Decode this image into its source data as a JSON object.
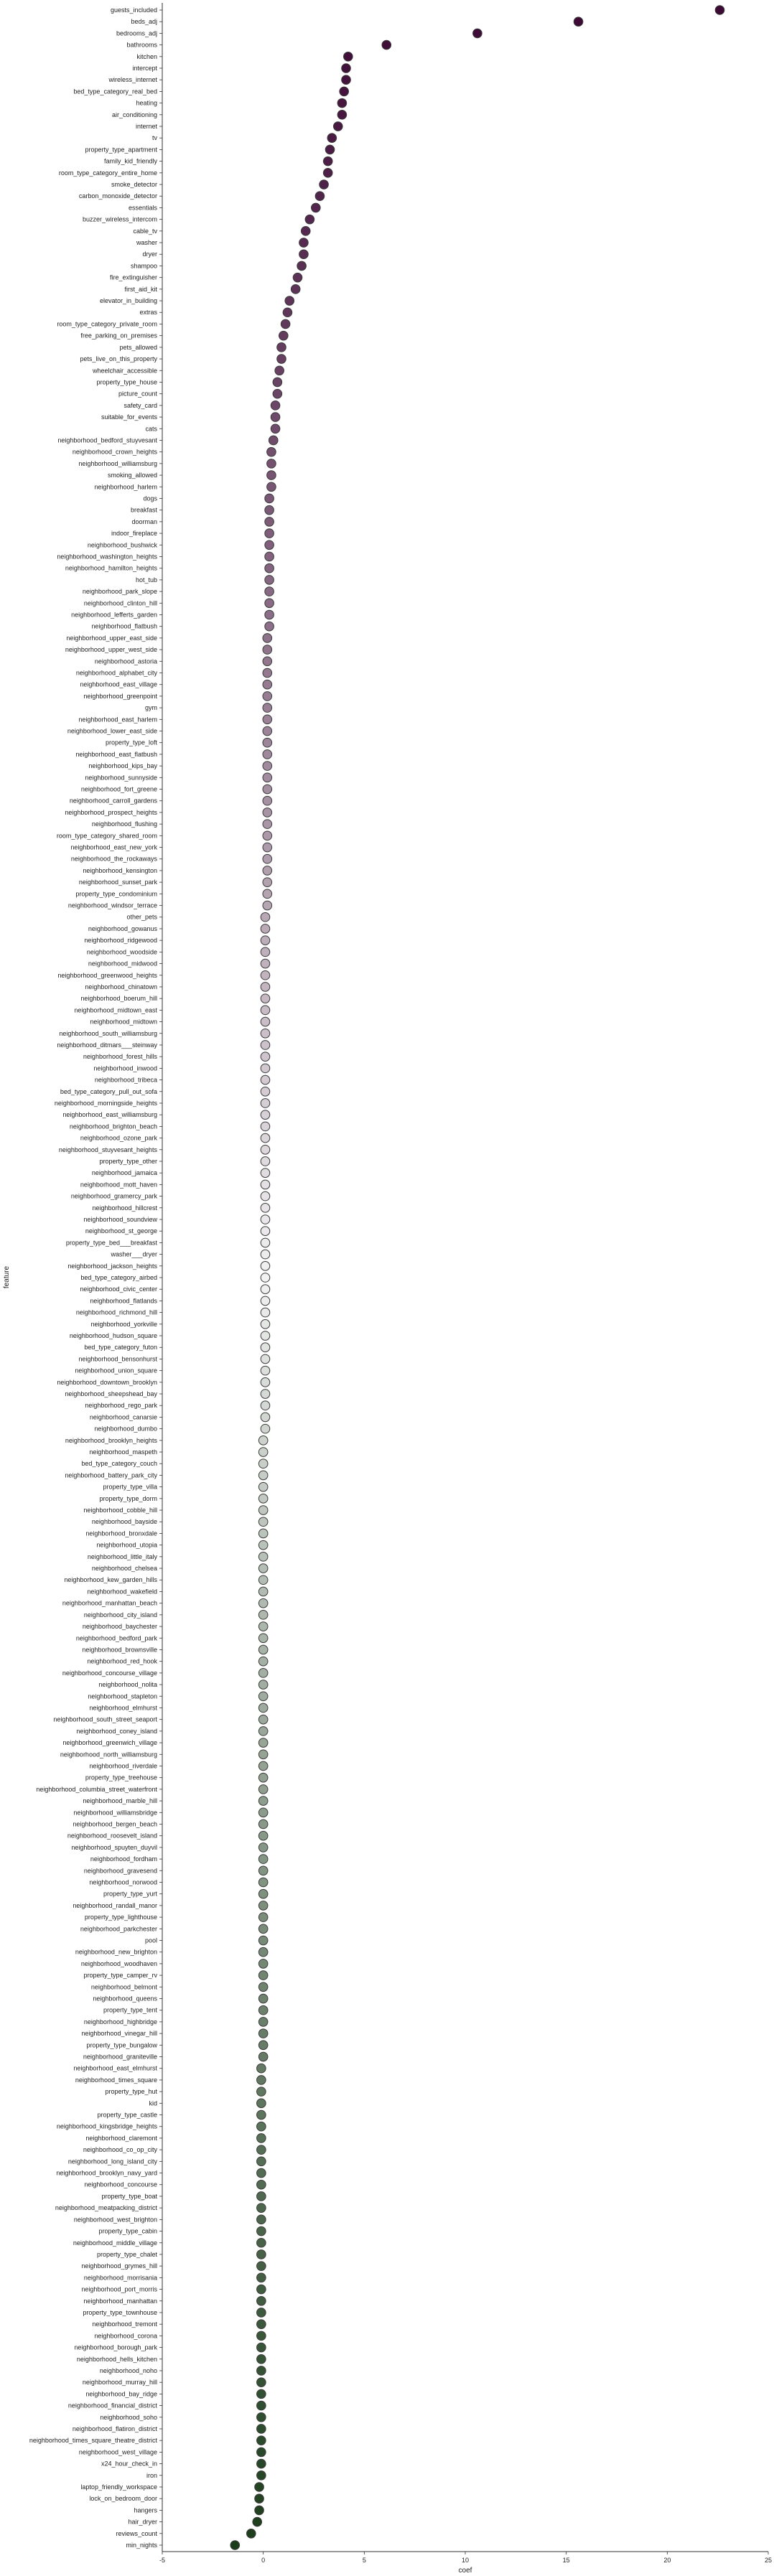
{
  "chart_data": {
    "type": "scatter",
    "title": "",
    "xlabel": "coef",
    "ylabel": "feature",
    "xlim": [
      -5,
      25
    ],
    "xticks": [
      -5,
      0,
      5,
      10,
      15,
      20,
      25
    ],
    "grid": false,
    "legend": "none",
    "palette": {
      "high": "#3d0a36",
      "mid": "#f2f2f2",
      "low": "#1c3d1c"
    },
    "points": [
      {
        "feature": "guests_included",
        "coef": 22.6
      },
      {
        "feature": "beds_adj",
        "coef": 15.6
      },
      {
        "feature": "bedrooms_adj",
        "coef": 10.6
      },
      {
        "feature": "bathrooms",
        "coef": 6.1
      },
      {
        "feature": "kitchen",
        "coef": 4.2
      },
      {
        "feature": "intercept",
        "coef": 4.1
      },
      {
        "feature": "wireless_internet",
        "coef": 4.1
      },
      {
        "feature": "bed_type_category_real_bed",
        "coef": 4.0
      },
      {
        "feature": "heating",
        "coef": 3.9
      },
      {
        "feature": "air_conditioning",
        "coef": 3.9
      },
      {
        "feature": "internet",
        "coef": 3.7
      },
      {
        "feature": "tv",
        "coef": 3.4
      },
      {
        "feature": "property_type_apartment",
        "coef": 3.3
      },
      {
        "feature": "family_kid_friendly",
        "coef": 3.2
      },
      {
        "feature": "room_type_category_entire_home",
        "coef": 3.2
      },
      {
        "feature": "smoke_detector",
        "coef": 3.0
      },
      {
        "feature": "carbon_monoxide_detector",
        "coef": 2.8
      },
      {
        "feature": "essentials",
        "coef": 2.6
      },
      {
        "feature": "buzzer_wireless_intercom",
        "coef": 2.3
      },
      {
        "feature": "cable_tv",
        "coef": 2.1
      },
      {
        "feature": "washer",
        "coef": 2.0
      },
      {
        "feature": "dryer",
        "coef": 2.0
      },
      {
        "feature": "shampoo",
        "coef": 1.9
      },
      {
        "feature": "fire_extinguisher",
        "coef": 1.7
      },
      {
        "feature": "first_aid_kit",
        "coef": 1.6
      },
      {
        "feature": "elevator_in_building",
        "coef": 1.3
      },
      {
        "feature": "extras",
        "coef": 1.2
      },
      {
        "feature": "room_type_category_private_room",
        "coef": 1.1
      },
      {
        "feature": "free_parking_on_premises",
        "coef": 1.0
      },
      {
        "feature": "pets_allowed",
        "coef": 0.9
      },
      {
        "feature": "pets_live_on_this_property",
        "coef": 0.9
      },
      {
        "feature": "wheelchair_accessible",
        "coef": 0.8
      },
      {
        "feature": "property_type_house",
        "coef": 0.7
      },
      {
        "feature": "picture_count",
        "coef": 0.7
      },
      {
        "feature": "safety_card",
        "coef": 0.6
      },
      {
        "feature": "suitable_for_events",
        "coef": 0.6
      },
      {
        "feature": "cats",
        "coef": 0.6
      },
      {
        "feature": "neighborhood_bedford_stuyvesant",
        "coef": 0.5
      },
      {
        "feature": "neighborhood_crown_heights",
        "coef": 0.4
      },
      {
        "feature": "neighborhood_williamsburg",
        "coef": 0.4
      },
      {
        "feature": "smoking_allowed",
        "coef": 0.4
      },
      {
        "feature": "neighborhood_harlem",
        "coef": 0.4
      },
      {
        "feature": "dogs",
        "coef": 0.3
      },
      {
        "feature": "breakfast",
        "coef": 0.3
      },
      {
        "feature": "doorman",
        "coef": 0.3
      },
      {
        "feature": "indoor_fireplace",
        "coef": 0.3
      },
      {
        "feature": "neighborhood_bushwick",
        "coef": 0.3
      },
      {
        "feature": "neighborhood_washington_heights",
        "coef": 0.3
      },
      {
        "feature": "neighborhood_hamilton_heights",
        "coef": 0.3
      },
      {
        "feature": "hot_tub",
        "coef": 0.3
      },
      {
        "feature": "neighborhood_park_slope",
        "coef": 0.3
      },
      {
        "feature": "neighborhood_clinton_hill",
        "coef": 0.3
      },
      {
        "feature": "neighborhood_lefferts_garden",
        "coef": 0.3
      },
      {
        "feature": "neighborhood_flatbush",
        "coef": 0.3
      },
      {
        "feature": "neighborhood_upper_east_side",
        "coef": 0.2
      },
      {
        "feature": "neighborhood_upper_west_side",
        "coef": 0.2
      },
      {
        "feature": "neighborhood_astoria",
        "coef": 0.2
      },
      {
        "feature": "neighborhood_alphabet_city",
        "coef": 0.2
      },
      {
        "feature": "neighborhood_east_village",
        "coef": 0.2
      },
      {
        "feature": "neighborhood_greenpoint",
        "coef": 0.2
      },
      {
        "feature": "gym",
        "coef": 0.2
      },
      {
        "feature": "neighborhood_east_harlem",
        "coef": 0.2
      },
      {
        "feature": "neighborhood_lower_east_side",
        "coef": 0.2
      },
      {
        "feature": "property_type_loft",
        "coef": 0.2
      },
      {
        "feature": "neighborhood_east_flatbush",
        "coef": 0.2
      },
      {
        "feature": "neighborhood_kips_bay",
        "coef": 0.2
      },
      {
        "feature": "neighborhood_sunnyside",
        "coef": 0.2
      },
      {
        "feature": "neighborhood_fort_greene",
        "coef": 0.2
      },
      {
        "feature": "neighborhood_carroll_gardens",
        "coef": 0.2
      },
      {
        "feature": "neighborhood_prospect_heights",
        "coef": 0.2
      },
      {
        "feature": "neighborhood_flushing",
        "coef": 0.2
      },
      {
        "feature": "room_type_category_shared_room",
        "coef": 0.2
      },
      {
        "feature": "neighborhood_east_new_york",
        "coef": 0.2
      },
      {
        "feature": "neighborhood_the_rockaways",
        "coef": 0.2
      },
      {
        "feature": "neighborhood_kensington",
        "coef": 0.2
      },
      {
        "feature": "neighborhood_sunset_park",
        "coef": 0.2
      },
      {
        "feature": "property_type_condominium",
        "coef": 0.2
      },
      {
        "feature": "neighborhood_windsor_terrace",
        "coef": 0.2
      },
      {
        "feature": "other_pets",
        "coef": 0.1
      },
      {
        "feature": "neighborhood_gowanus",
        "coef": 0.1
      },
      {
        "feature": "neighborhood_ridgewood",
        "coef": 0.1
      },
      {
        "feature": "neighborhood_woodside",
        "coef": 0.1
      },
      {
        "feature": "neighborhood_midwood",
        "coef": 0.1
      },
      {
        "feature": "neighborhood_greenwood_heights",
        "coef": 0.1
      },
      {
        "feature": "neighborhood_chinatown",
        "coef": 0.1
      },
      {
        "feature": "neighborhood_boerum_hill",
        "coef": 0.1
      },
      {
        "feature": "neighborhood_midtown_east",
        "coef": 0.1
      },
      {
        "feature": "neighborhood_midtown",
        "coef": 0.1
      },
      {
        "feature": "neighborhood_south_williamsburg",
        "coef": 0.1
      },
      {
        "feature": "neighborhood_ditmars___steinway",
        "coef": 0.1
      },
      {
        "feature": "neighborhood_forest_hills",
        "coef": 0.1
      },
      {
        "feature": "neighborhood_inwood",
        "coef": 0.1
      },
      {
        "feature": "neighborhood_tribeca",
        "coef": 0.1
      },
      {
        "feature": "bed_type_category_pull_out_sofa",
        "coef": 0.1
      },
      {
        "feature": "neighborhood_morningside_heights",
        "coef": 0.1
      },
      {
        "feature": "neighborhood_east_williamsburg",
        "coef": 0.1
      },
      {
        "feature": "neighborhood_brighton_beach",
        "coef": 0.1
      },
      {
        "feature": "neighborhood_ozone_park",
        "coef": 0.1
      },
      {
        "feature": "neighborhood_stuyvesant_heights",
        "coef": 0.1
      },
      {
        "feature": "property_type_other",
        "coef": 0.1
      },
      {
        "feature": "neighborhood_jamaica",
        "coef": 0.1
      },
      {
        "feature": "neighborhood_mott_haven",
        "coef": 0.1
      },
      {
        "feature": "neighborhood_gramercy_park",
        "coef": 0.1
      },
      {
        "feature": "neighborhood_hillcrest",
        "coef": 0.1
      },
      {
        "feature": "neighborhood_soundview",
        "coef": 0.1
      },
      {
        "feature": "neighborhood_st_george",
        "coef": 0.1
      },
      {
        "feature": "property_type_bed___breakfast",
        "coef": 0.1
      },
      {
        "feature": "washer___dryer",
        "coef": 0.1
      },
      {
        "feature": "neighborhood_jackson_heights",
        "coef": 0.1
      },
      {
        "feature": "bed_type_category_airbed",
        "coef": 0.1
      },
      {
        "feature": "neighborhood_civic_center",
        "coef": 0.1
      },
      {
        "feature": "neighborhood_flatlands",
        "coef": 0.1
      },
      {
        "feature": "neighborhood_richmond_hill",
        "coef": 0.1
      },
      {
        "feature": "neighborhood_yorkville",
        "coef": 0.1
      },
      {
        "feature": "neighborhood_hudson_square",
        "coef": 0.1
      },
      {
        "feature": "bed_type_category_futon",
        "coef": 0.1
      },
      {
        "feature": "neighborhood_bensonhurst",
        "coef": 0.1
      },
      {
        "feature": "neighborhood_union_square",
        "coef": 0.1
      },
      {
        "feature": "neighborhood_downtown_brooklyn",
        "coef": 0.1
      },
      {
        "feature": "neighborhood_sheepshead_bay",
        "coef": 0.1
      },
      {
        "feature": "neighborhood_rego_park",
        "coef": 0.1
      },
      {
        "feature": "neighborhood_canarsie",
        "coef": 0.1
      },
      {
        "feature": "neighborhood_dumbo",
        "coef": 0.1
      },
      {
        "feature": "neighborhood_brooklyn_heights",
        "coef": 0.0
      },
      {
        "feature": "neighborhood_maspeth",
        "coef": 0.0
      },
      {
        "feature": "bed_type_category_couch",
        "coef": 0.0
      },
      {
        "feature": "neighborhood_battery_park_city",
        "coef": 0.0
      },
      {
        "feature": "property_type_villa",
        "coef": 0.0
      },
      {
        "feature": "property_type_dorm",
        "coef": 0.0
      },
      {
        "feature": "neighborhood_cobble_hill",
        "coef": 0.0
      },
      {
        "feature": "neighborhood_bayside",
        "coef": 0.0
      },
      {
        "feature": "neighborhood_bronxdale",
        "coef": 0.0
      },
      {
        "feature": "neighborhood_utopia",
        "coef": 0.0
      },
      {
        "feature": "neighborhood_little_italy",
        "coef": 0.0
      },
      {
        "feature": "neighborhood_chelsea",
        "coef": 0.0
      },
      {
        "feature": "neighborhood_kew_garden_hills",
        "coef": 0.0
      },
      {
        "feature": "neighborhood_wakefield",
        "coef": 0.0
      },
      {
        "feature": "neighborhood_manhattan_beach",
        "coef": 0.0
      },
      {
        "feature": "neighborhood_city_island",
        "coef": 0.0
      },
      {
        "feature": "neighborhood_baychester",
        "coef": 0.0
      },
      {
        "feature": "neighborhood_bedford_park",
        "coef": 0.0
      },
      {
        "feature": "neighborhood_brownsville",
        "coef": 0.0
      },
      {
        "feature": "neighborhood_red_hook",
        "coef": 0.0
      },
      {
        "feature": "neighborhood_concourse_village",
        "coef": 0.0
      },
      {
        "feature": "neighborhood_nolita",
        "coef": 0.0
      },
      {
        "feature": "neighborhood_stapleton",
        "coef": 0.0
      },
      {
        "feature": "neighborhood_elmhurst",
        "coef": 0.0
      },
      {
        "feature": "neighborhood_south_street_seaport",
        "coef": 0.0
      },
      {
        "feature": "neighborhood_coney_island",
        "coef": 0.0
      },
      {
        "feature": "neighborhood_greenwich_village",
        "coef": 0.0
      },
      {
        "feature": "neighborhood_north_williamsburg",
        "coef": 0.0
      },
      {
        "feature": "neighborhood_riverdale",
        "coef": 0.0
      },
      {
        "feature": "property_type_treehouse",
        "coef": 0.0
      },
      {
        "feature": "neighborhood_columbia_street_waterfront",
        "coef": 0.0
      },
      {
        "feature": "neighborhood_marble_hill",
        "coef": 0.0
      },
      {
        "feature": "neighborhood_williamsbridge",
        "coef": 0.0
      },
      {
        "feature": "neighborhood_bergen_beach",
        "coef": 0.0
      },
      {
        "feature": "neighborhood_roosevelt_island",
        "coef": 0.0
      },
      {
        "feature": "neighborhood_spuyten_duyvil",
        "coef": 0.0
      },
      {
        "feature": "neighborhood_fordham",
        "coef": 0.0
      },
      {
        "feature": "neighborhood_gravesend",
        "coef": 0.0
      },
      {
        "feature": "neighborhood_norwood",
        "coef": 0.0
      },
      {
        "feature": "property_type_yurt",
        "coef": 0.0
      },
      {
        "feature": "neighborhood_randall_manor",
        "coef": 0.0
      },
      {
        "feature": "property_type_lighthouse",
        "coef": 0.0
      },
      {
        "feature": "neighborhood_parkchester",
        "coef": 0.0
      },
      {
        "feature": "pool",
        "coef": 0.0
      },
      {
        "feature": "neighborhood_new_brighton",
        "coef": 0.0
      },
      {
        "feature": "neighborhood_woodhaven",
        "coef": 0.0
      },
      {
        "feature": "property_type_camper_rv",
        "coef": 0.0
      },
      {
        "feature": "neighborhood_belmont",
        "coef": 0.0
      },
      {
        "feature": "neighborhood_queens",
        "coef": 0.0
      },
      {
        "feature": "property_type_tent",
        "coef": 0.0
      },
      {
        "feature": "neighborhood_highbridge",
        "coef": 0.0
      },
      {
        "feature": "neighborhood_vinegar_hill",
        "coef": 0.0
      },
      {
        "feature": "property_type_bungalow",
        "coef": 0.0
      },
      {
        "feature": "neighborhood_graniteville",
        "coef": 0.0
      },
      {
        "feature": "neighborhood_east_elmhurst",
        "coef": -0.1
      },
      {
        "feature": "neighborhood_times_square",
        "coef": -0.1
      },
      {
        "feature": "property_type_hut",
        "coef": -0.1
      },
      {
        "feature": "kid",
        "coef": -0.1
      },
      {
        "feature": "property_type_castle",
        "coef": -0.1
      },
      {
        "feature": "neighborhood_kingsbridge_heights",
        "coef": -0.1
      },
      {
        "feature": "neighborhood_claremont",
        "coef": -0.1
      },
      {
        "feature": "neighborhood_co_op_city",
        "coef": -0.1
      },
      {
        "feature": "neighborhood_long_island_city",
        "coef": -0.1
      },
      {
        "feature": "neighborhood_brooklyn_navy_yard",
        "coef": -0.1
      },
      {
        "feature": "neighborhood_concourse",
        "coef": -0.1
      },
      {
        "feature": "property_type_boat",
        "coef": -0.1
      },
      {
        "feature": "neighborhood_meatpacking_district",
        "coef": -0.1
      },
      {
        "feature": "neighborhood_west_brighton",
        "coef": -0.1
      },
      {
        "feature": "property_type_cabin",
        "coef": -0.1
      },
      {
        "feature": "neighborhood_middle_village",
        "coef": -0.1
      },
      {
        "feature": "property_type_chalet",
        "coef": -0.1
      },
      {
        "feature": "neighborhood_grymes_hill",
        "coef": -0.1
      },
      {
        "feature": "neighborhood_morrisania",
        "coef": -0.1
      },
      {
        "feature": "neighborhood_port_morris",
        "coef": -0.1
      },
      {
        "feature": "neighborhood_manhattan",
        "coef": -0.1
      },
      {
        "feature": "property_type_townhouse",
        "coef": -0.1
      },
      {
        "feature": "neighborhood_tremont",
        "coef": -0.1
      },
      {
        "feature": "neighborhood_corona",
        "coef": -0.1
      },
      {
        "feature": "neighborhood_borough_park",
        "coef": -0.1
      },
      {
        "feature": "neighborhood_hells_kitchen",
        "coef": -0.1
      },
      {
        "feature": "neighborhood_noho",
        "coef": -0.1
      },
      {
        "feature": "neighborhood_murray_hill",
        "coef": -0.1
      },
      {
        "feature": "neighborhood_bay_ridge",
        "coef": -0.1
      },
      {
        "feature": "neighborhood_financial_district",
        "coef": -0.1
      },
      {
        "feature": "neighborhood_soho",
        "coef": -0.1
      },
      {
        "feature": "neighborhood_flatiron_district",
        "coef": -0.1
      },
      {
        "feature": "neighborhood_times_square_theatre_district",
        "coef": -0.1
      },
      {
        "feature": "neighborhood_west_village",
        "coef": -0.1
      },
      {
        "feature": "x24_hour_check_in",
        "coef": -0.1
      },
      {
        "feature": "iron",
        "coef": -0.1
      },
      {
        "feature": "laptop_friendly_workspace",
        "coef": -0.2
      },
      {
        "feature": "lock_on_bedroom_door",
        "coef": -0.2
      },
      {
        "feature": "hangers",
        "coef": -0.2
      },
      {
        "feature": "hair_dryer",
        "coef": -0.3
      },
      {
        "feature": "reviews_count",
        "coef": -0.6
      },
      {
        "feature": "min_nights",
        "coef": -1.4
      }
    ]
  }
}
